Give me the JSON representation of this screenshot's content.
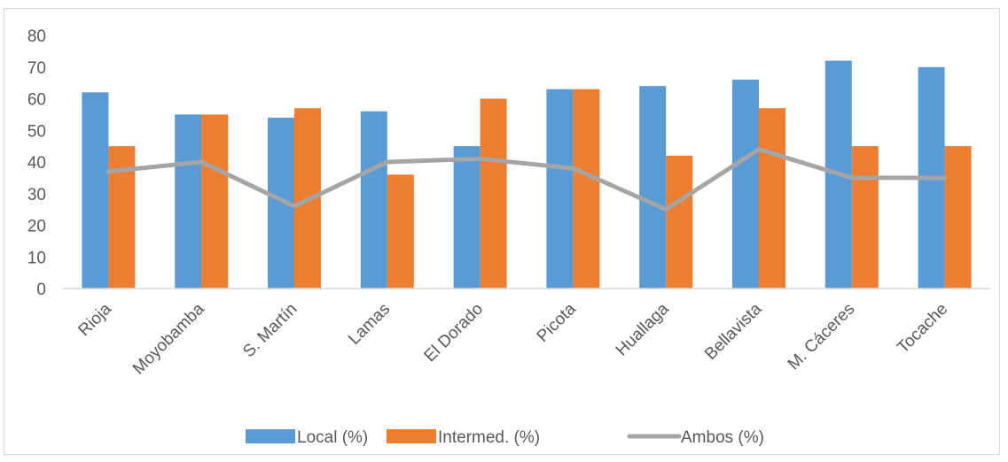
{
  "chart_data": {
    "type": "bar",
    "title": "",
    "xlabel": "",
    "ylabel": "",
    "ylim": [
      0,
      80
    ],
    "yticks": [
      0,
      10,
      20,
      30,
      40,
      50,
      60,
      70,
      80
    ],
    "grid": false,
    "legend_position": "bottom",
    "categories": [
      "Rioja",
      "Moyobamba",
      "S. Martín",
      "Lamas",
      "El Dorado",
      "Picota",
      "Huallaga",
      "Bellavista",
      "M. Cáceres",
      "Tocache"
    ],
    "series": [
      {
        "name": "Local (%)",
        "kind": "bar",
        "color": "#5b9bd5",
        "values": [
          62,
          55,
          54,
          56,
          45,
          63,
          64,
          66,
          72,
          70
        ]
      },
      {
        "name": "Intermed. (%)",
        "kind": "bar",
        "color": "#ed7d31",
        "values": [
          45,
          55,
          57,
          36,
          60,
          63,
          42,
          57,
          45,
          45
        ]
      },
      {
        "name": "Ambos (%)",
        "kind": "line",
        "color": "#a5a5a5",
        "values": [
          37,
          40,
          26,
          40,
          41,
          38,
          25,
          44,
          35,
          35
        ]
      }
    ]
  }
}
